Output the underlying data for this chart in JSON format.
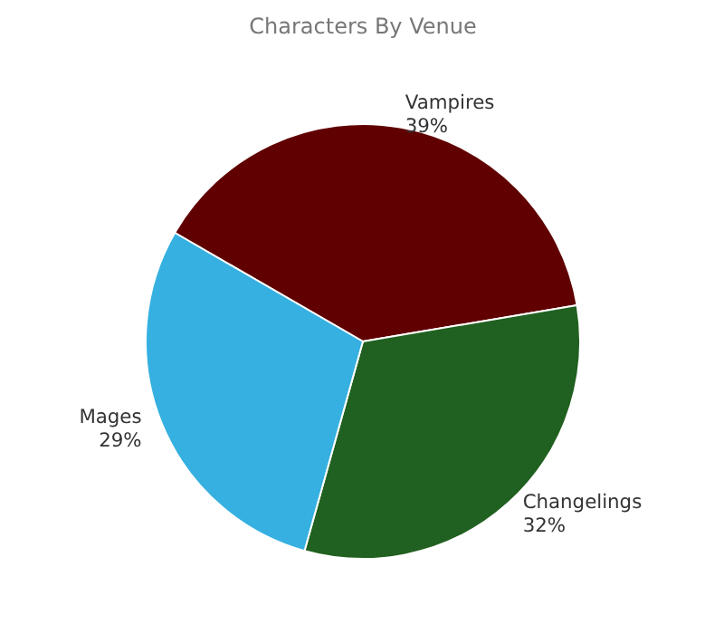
{
  "chart_data": {
    "type": "pie",
    "title": "Characters By Venue",
    "categories": [
      "Vampires",
      "Changelings",
      "Mages"
    ],
    "values": [
      39,
      32,
      29
    ],
    "value_labels": [
      "39%",
      "32%",
      "29%"
    ],
    "colors": [
      "#600000",
      "#206020",
      "#35b0e0"
    ]
  }
}
